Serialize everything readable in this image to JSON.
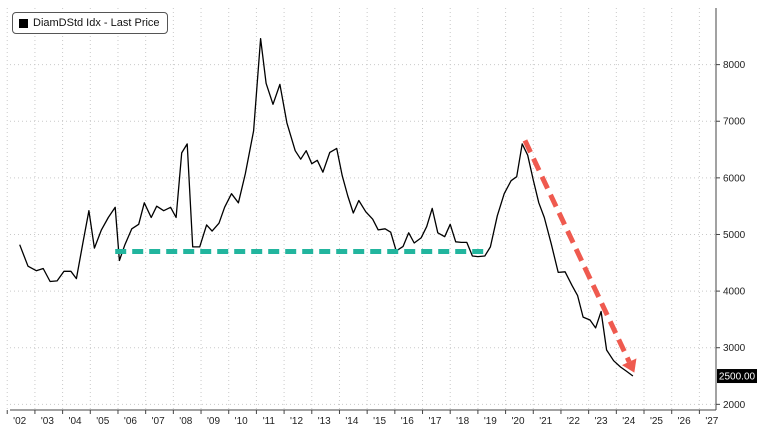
{
  "chart_data": {
    "type": "line",
    "legend": {
      "label": "DiamDStd Idx - Last Price",
      "position": "top-left"
    },
    "x_tick_labels": [
      "'02",
      "'03",
      "'04",
      "'05",
      "'06",
      "'07",
      "'08",
      "'09",
      "'10",
      "'11",
      "'12",
      "'13",
      "'14",
      "'15",
      "'16",
      "'17",
      "'18",
      "'19",
      "'20",
      "'21",
      "'22",
      "'23",
      "'24",
      "'25",
      "'26",
      "'27"
    ],
    "y_tick_labels": [
      "2000",
      "3000",
      "4000",
      "5000",
      "6000",
      "7000",
      "8000"
    ],
    "ylim": [
      1900,
      9000
    ],
    "xlim": [
      2001.65,
      2027.15
    ],
    "grid": {
      "vertical": true,
      "horizontal": true,
      "style": "dotted"
    },
    "last_price_label": "2500.00",
    "colors": {
      "line": "#000000",
      "support": "#22b59e",
      "trend": "#ef5a4f"
    },
    "series": [
      {
        "values": [
          [
            2002.0,
            4820
          ],
          [
            2002.3,
            4440
          ],
          [
            2002.6,
            4360
          ],
          [
            2002.85,
            4400
          ],
          [
            2003.1,
            4170
          ],
          [
            2003.35,
            4180
          ],
          [
            2003.6,
            4350
          ],
          [
            2003.85,
            4350
          ],
          [
            2004.05,
            4220
          ],
          [
            2004.3,
            4900
          ],
          [
            2004.5,
            5420
          ],
          [
            2004.7,
            4760
          ],
          [
            2004.95,
            5080
          ],
          [
            2005.2,
            5300
          ],
          [
            2005.45,
            5480
          ],
          [
            2005.6,
            4540
          ],
          [
            2005.8,
            4820
          ],
          [
            2006.05,
            5100
          ],
          [
            2006.3,
            5180
          ],
          [
            2006.5,
            5560
          ],
          [
            2006.75,
            5300
          ],
          [
            2006.95,
            5500
          ],
          [
            2007.2,
            5420
          ],
          [
            2007.45,
            5480
          ],
          [
            2007.65,
            5300
          ],
          [
            2007.85,
            6440
          ],
          [
            2008.05,
            6600
          ],
          [
            2008.25,
            4780
          ],
          [
            2008.5,
            4780
          ],
          [
            2008.75,
            5170
          ],
          [
            2008.95,
            5060
          ],
          [
            2009.2,
            5200
          ],
          [
            2009.4,
            5480
          ],
          [
            2009.65,
            5720
          ],
          [
            2009.9,
            5560
          ],
          [
            2010.15,
            6070
          ],
          [
            2010.45,
            6830
          ],
          [
            2010.7,
            8460
          ],
          [
            2010.9,
            7670
          ],
          [
            2011.15,
            7300
          ],
          [
            2011.4,
            7650
          ],
          [
            2011.65,
            6970
          ],
          [
            2011.95,
            6480
          ],
          [
            2012.15,
            6330
          ],
          [
            2012.35,
            6480
          ],
          [
            2012.55,
            6250
          ],
          [
            2012.75,
            6310
          ],
          [
            2012.95,
            6100
          ],
          [
            2013.2,
            6450
          ],
          [
            2013.45,
            6520
          ],
          [
            2013.65,
            6040
          ],
          [
            2013.85,
            5680
          ],
          [
            2014.05,
            5380
          ],
          [
            2014.25,
            5600
          ],
          [
            2014.5,
            5400
          ],
          [
            2014.75,
            5270
          ],
          [
            2014.95,
            5080
          ],
          [
            2015.2,
            5100
          ],
          [
            2015.4,
            5040
          ],
          [
            2015.6,
            4710
          ],
          [
            2015.85,
            4790
          ],
          [
            2016.05,
            5030
          ],
          [
            2016.25,
            4850
          ],
          [
            2016.5,
            4940
          ],
          [
            2016.7,
            5140
          ],
          [
            2016.9,
            5460
          ],
          [
            2017.1,
            5030
          ],
          [
            2017.35,
            4960
          ],
          [
            2017.55,
            5180
          ],
          [
            2017.75,
            4870
          ],
          [
            2017.95,
            4860
          ],
          [
            2018.15,
            4860
          ],
          [
            2018.35,
            4620
          ],
          [
            2018.55,
            4610
          ],
          [
            2018.8,
            4620
          ],
          [
            2019.0,
            4780
          ],
          [
            2019.25,
            5330
          ],
          [
            2019.5,
            5720
          ],
          [
            2019.75,
            5950
          ],
          [
            2019.95,
            6020
          ],
          [
            2020.15,
            6600
          ],
          [
            2020.35,
            6400
          ],
          [
            2020.55,
            5960
          ],
          [
            2020.75,
            5560
          ],
          [
            2020.95,
            5300
          ],
          [
            2021.2,
            4830
          ],
          [
            2021.45,
            4330
          ],
          [
            2021.7,
            4340
          ],
          [
            2021.95,
            4100
          ],
          [
            2022.15,
            3920
          ],
          [
            2022.35,
            3540
          ],
          [
            2022.6,
            3490
          ],
          [
            2022.8,
            3350
          ],
          [
            2023.0,
            3640
          ],
          [
            2023.2,
            2960
          ],
          [
            2023.45,
            2770
          ],
          [
            2023.7,
            2660
          ],
          [
            2023.9,
            2590
          ],
          [
            2024.15,
            2500
          ]
        ]
      }
    ],
    "annotations": [
      {
        "type": "dashed-line",
        "color": "support",
        "from": [
          2005.45,
          4700
        ],
        "to": [
          2018.9,
          4700
        ]
      },
      {
        "type": "dashed-arrow",
        "color": "trend",
        "from": [
          2020.25,
          6660
        ],
        "to": [
          2024.2,
          2560
        ]
      }
    ]
  }
}
